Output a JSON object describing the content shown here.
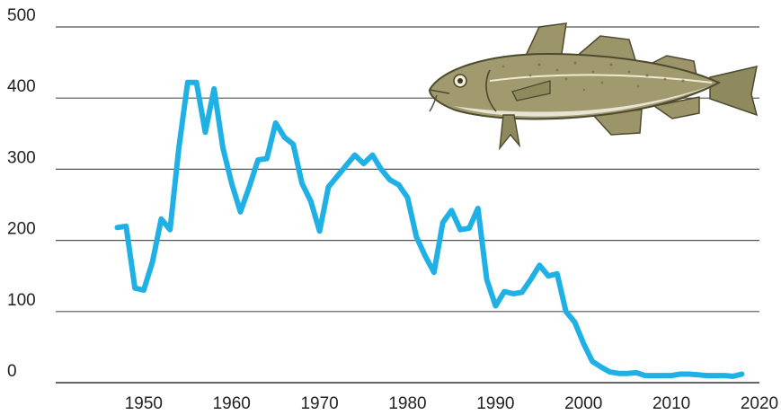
{
  "chart_data": {
    "type": "line",
    "title": "",
    "xlabel": "",
    "ylabel": "",
    "xlim": [
      1940,
      2020
    ],
    "ylim": [
      0,
      500
    ],
    "grid": true,
    "x_ticks": [
      "1950",
      "1960",
      "1970",
      "1980",
      "1990",
      "2000",
      "2010",
      "2020"
    ],
    "y_ticks": [
      "0",
      "100",
      "200",
      "300",
      "400",
      "500"
    ],
    "illustration": "cod-fish",
    "series": [
      {
        "color": "#1fb1e6",
        "points": [
          [
            1947,
            218
          ],
          [
            1948,
            220
          ],
          [
            1949,
            133
          ],
          [
            1950,
            130
          ],
          [
            1951,
            170
          ],
          [
            1952,
            230
          ],
          [
            1953,
            215
          ],
          [
            1954,
            330
          ],
          [
            1955,
            422
          ],
          [
            1956,
            422
          ],
          [
            1957,
            352
          ],
          [
            1958,
            413
          ],
          [
            1959,
            330
          ],
          [
            1960,
            280
          ],
          [
            1961,
            240
          ],
          [
            1962,
            275
          ],
          [
            1963,
            313
          ],
          [
            1964,
            315
          ],
          [
            1965,
            365
          ],
          [
            1966,
            345
          ],
          [
            1967,
            335
          ],
          [
            1968,
            280
          ],
          [
            1969,
            255
          ],
          [
            1970,
            213
          ],
          [
            1971,
            275
          ],
          [
            1972,
            290
          ],
          [
            1973,
            305
          ],
          [
            1974,
            320
          ],
          [
            1975,
            308
          ],
          [
            1976,
            320
          ],
          [
            1977,
            300
          ],
          [
            1978,
            285
          ],
          [
            1979,
            278
          ],
          [
            1980,
            260
          ],
          [
            1981,
            205
          ],
          [
            1982,
            178
          ],
          [
            1983,
            155
          ],
          [
            1984,
            225
          ],
          [
            1985,
            242
          ],
          [
            1986,
            215
          ],
          [
            1987,
            217
          ],
          [
            1988,
            245
          ],
          [
            1989,
            145
          ],
          [
            1990,
            108
          ],
          [
            1991,
            128
          ],
          [
            1992,
            125
          ],
          [
            1993,
            127
          ],
          [
            1994,
            145
          ],
          [
            1995,
            165
          ],
          [
            1996,
            150
          ],
          [
            1997,
            153
          ],
          [
            1998,
            100
          ],
          [
            1999,
            85
          ],
          [
            2000,
            55
          ],
          [
            2001,
            30
          ],
          [
            2002,
            22
          ],
          [
            2003,
            15
          ],
          [
            2004,
            13
          ],
          [
            2005,
            13
          ],
          [
            2006,
            14
          ],
          [
            2007,
            10
          ],
          [
            2008,
            10
          ],
          [
            2009,
            10
          ],
          [
            2010,
            10
          ],
          [
            2011,
            12
          ],
          [
            2012,
            12
          ],
          [
            2013,
            11
          ],
          [
            2014,
            10
          ],
          [
            2015,
            10
          ],
          [
            2016,
            10
          ],
          [
            2017,
            9
          ],
          [
            2018,
            12
          ]
        ]
      }
    ]
  }
}
